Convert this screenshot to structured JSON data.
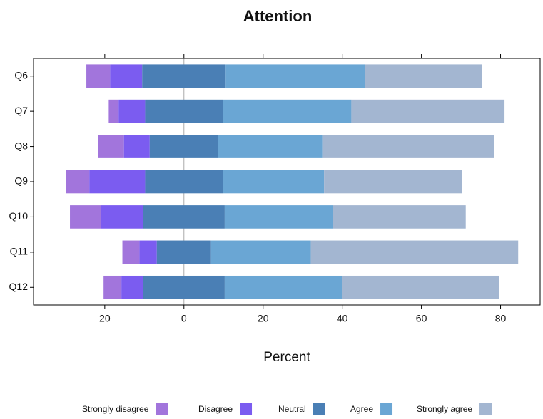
{
  "chart_data": {
    "type": "diverging-bar",
    "title": "Attention",
    "x_label": "Percent",
    "categories": [
      "Q6",
      "Q7",
      "Q8",
      "Q9",
      "Q10",
      "Q11",
      "Q12"
    ],
    "series": [
      {
        "name": "Strongly disagree",
        "color": "#a275dc",
        "side": "negative",
        "values": [
          6.0,
          2.5,
          6.5,
          5.9,
          7.9,
          4.3,
          4.5
        ]
      },
      {
        "name": "Disagree",
        "color": "#7b5cf0",
        "side": "negative",
        "values": [
          8.1,
          6.7,
          6.5,
          14.1,
          10.6,
          4.4,
          5.5
        ]
      },
      {
        "name": "Neutral",
        "color": "#4a7fb5",
        "side": "center",
        "values": [
          21.1,
          19.6,
          17.3,
          19.6,
          20.6,
          13.7,
          20.6
        ]
      },
      {
        "name": "Agree",
        "color": "#6aa6d4",
        "side": "positive",
        "values": [
          35.1,
          32.5,
          26.3,
          25.6,
          27.4,
          25.2,
          29.7
        ]
      },
      {
        "name": "Strongly agree",
        "color": "#a3b6d1",
        "side": "positive",
        "values": [
          29.7,
          38.7,
          43.4,
          34.8,
          33.5,
          52.4,
          39.7
        ]
      }
    ],
    "xlim": [
      -38,
      90
    ],
    "xticks": [
      {
        "value": -20,
        "label": "20"
      },
      0,
      20,
      40,
      60,
      80
    ]
  }
}
